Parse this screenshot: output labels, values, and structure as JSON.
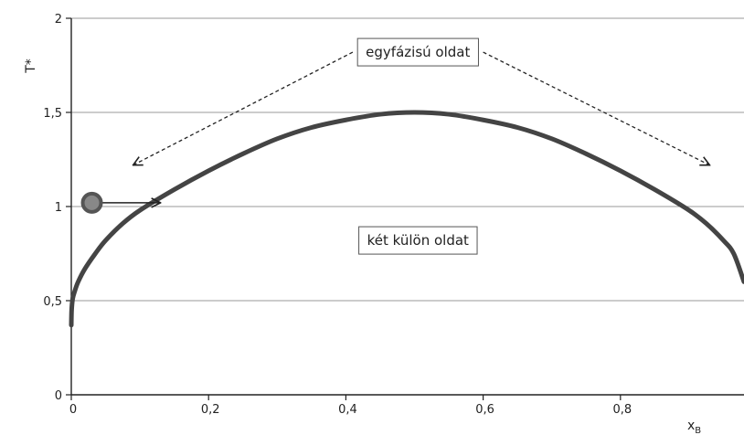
{
  "chart_data": {
    "type": "line",
    "title": "",
    "xlabel": "x_B",
    "xlabel_main": "x",
    "xlabel_sub": "B",
    "ylabel": "T*",
    "xlim": [
      0,
      0.98
    ],
    "ylim": [
      0,
      2
    ],
    "x_ticks": [
      0,
      0.2,
      0.4,
      0.6,
      0.8
    ],
    "x_tick_labels": [
      "0",
      "0,2",
      "0,4",
      "0,6",
      "0,8"
    ],
    "y_ticks": [
      0,
      0.5,
      1,
      1.5,
      2
    ],
    "y_tick_labels": [
      "0",
      "0,5",
      "1",
      "1,5",
      "2"
    ],
    "grid": "horizontal",
    "series": [
      {
        "color": "#444444",
        "points": [
          [
            0.0,
            0.37
          ],
          [
            0.0005,
            0.45
          ],
          [
            0.002,
            0.51
          ],
          [
            0.005,
            0.55
          ],
          [
            0.01,
            0.6
          ],
          [
            0.02,
            0.67
          ],
          [
            0.035,
            0.75
          ],
          [
            0.05,
            0.82
          ],
          [
            0.075,
            0.91
          ],
          [
            0.1,
            0.98
          ],
          [
            0.15,
            1.09
          ],
          [
            0.2,
            1.19
          ],
          [
            0.25,
            1.28
          ],
          [
            0.3,
            1.36
          ],
          [
            0.35,
            1.42
          ],
          [
            0.4,
            1.46
          ],
          [
            0.45,
            1.49
          ],
          [
            0.5,
            1.5
          ],
          [
            0.55,
            1.49
          ],
          [
            0.6,
            1.46
          ],
          [
            0.65,
            1.42
          ],
          [
            0.7,
            1.36
          ],
          [
            0.75,
            1.28
          ],
          [
            0.8,
            1.19
          ],
          [
            0.85,
            1.09
          ],
          [
            0.9,
            0.98
          ],
          [
            0.925,
            0.91
          ],
          [
            0.95,
            0.82
          ],
          [
            0.965,
            0.75
          ],
          [
            0.98,
            0.6
          ]
        ]
      }
    ],
    "marker": {
      "x": 0.03,
      "y": 1.02,
      "color": "#888888",
      "edge": "#555555"
    },
    "annotations": [
      {
        "text": "egyfázisú oldat",
        "x": 0.505,
        "y": 1.82
      },
      {
        "text": "két külön oldat",
        "x": 0.505,
        "y": 0.82
      }
    ],
    "arrows": [
      {
        "style": "dashed",
        "from": [
          0.41,
          1.82
        ],
        "to": [
          0.09,
          1.22
        ]
      },
      {
        "style": "dashed",
        "from": [
          0.6,
          1.82
        ],
        "to": [
          0.93,
          1.22
        ]
      },
      {
        "style": "solid",
        "from": [
          0.035,
          1.02
        ],
        "to": [
          0.13,
          1.02
        ]
      }
    ]
  }
}
